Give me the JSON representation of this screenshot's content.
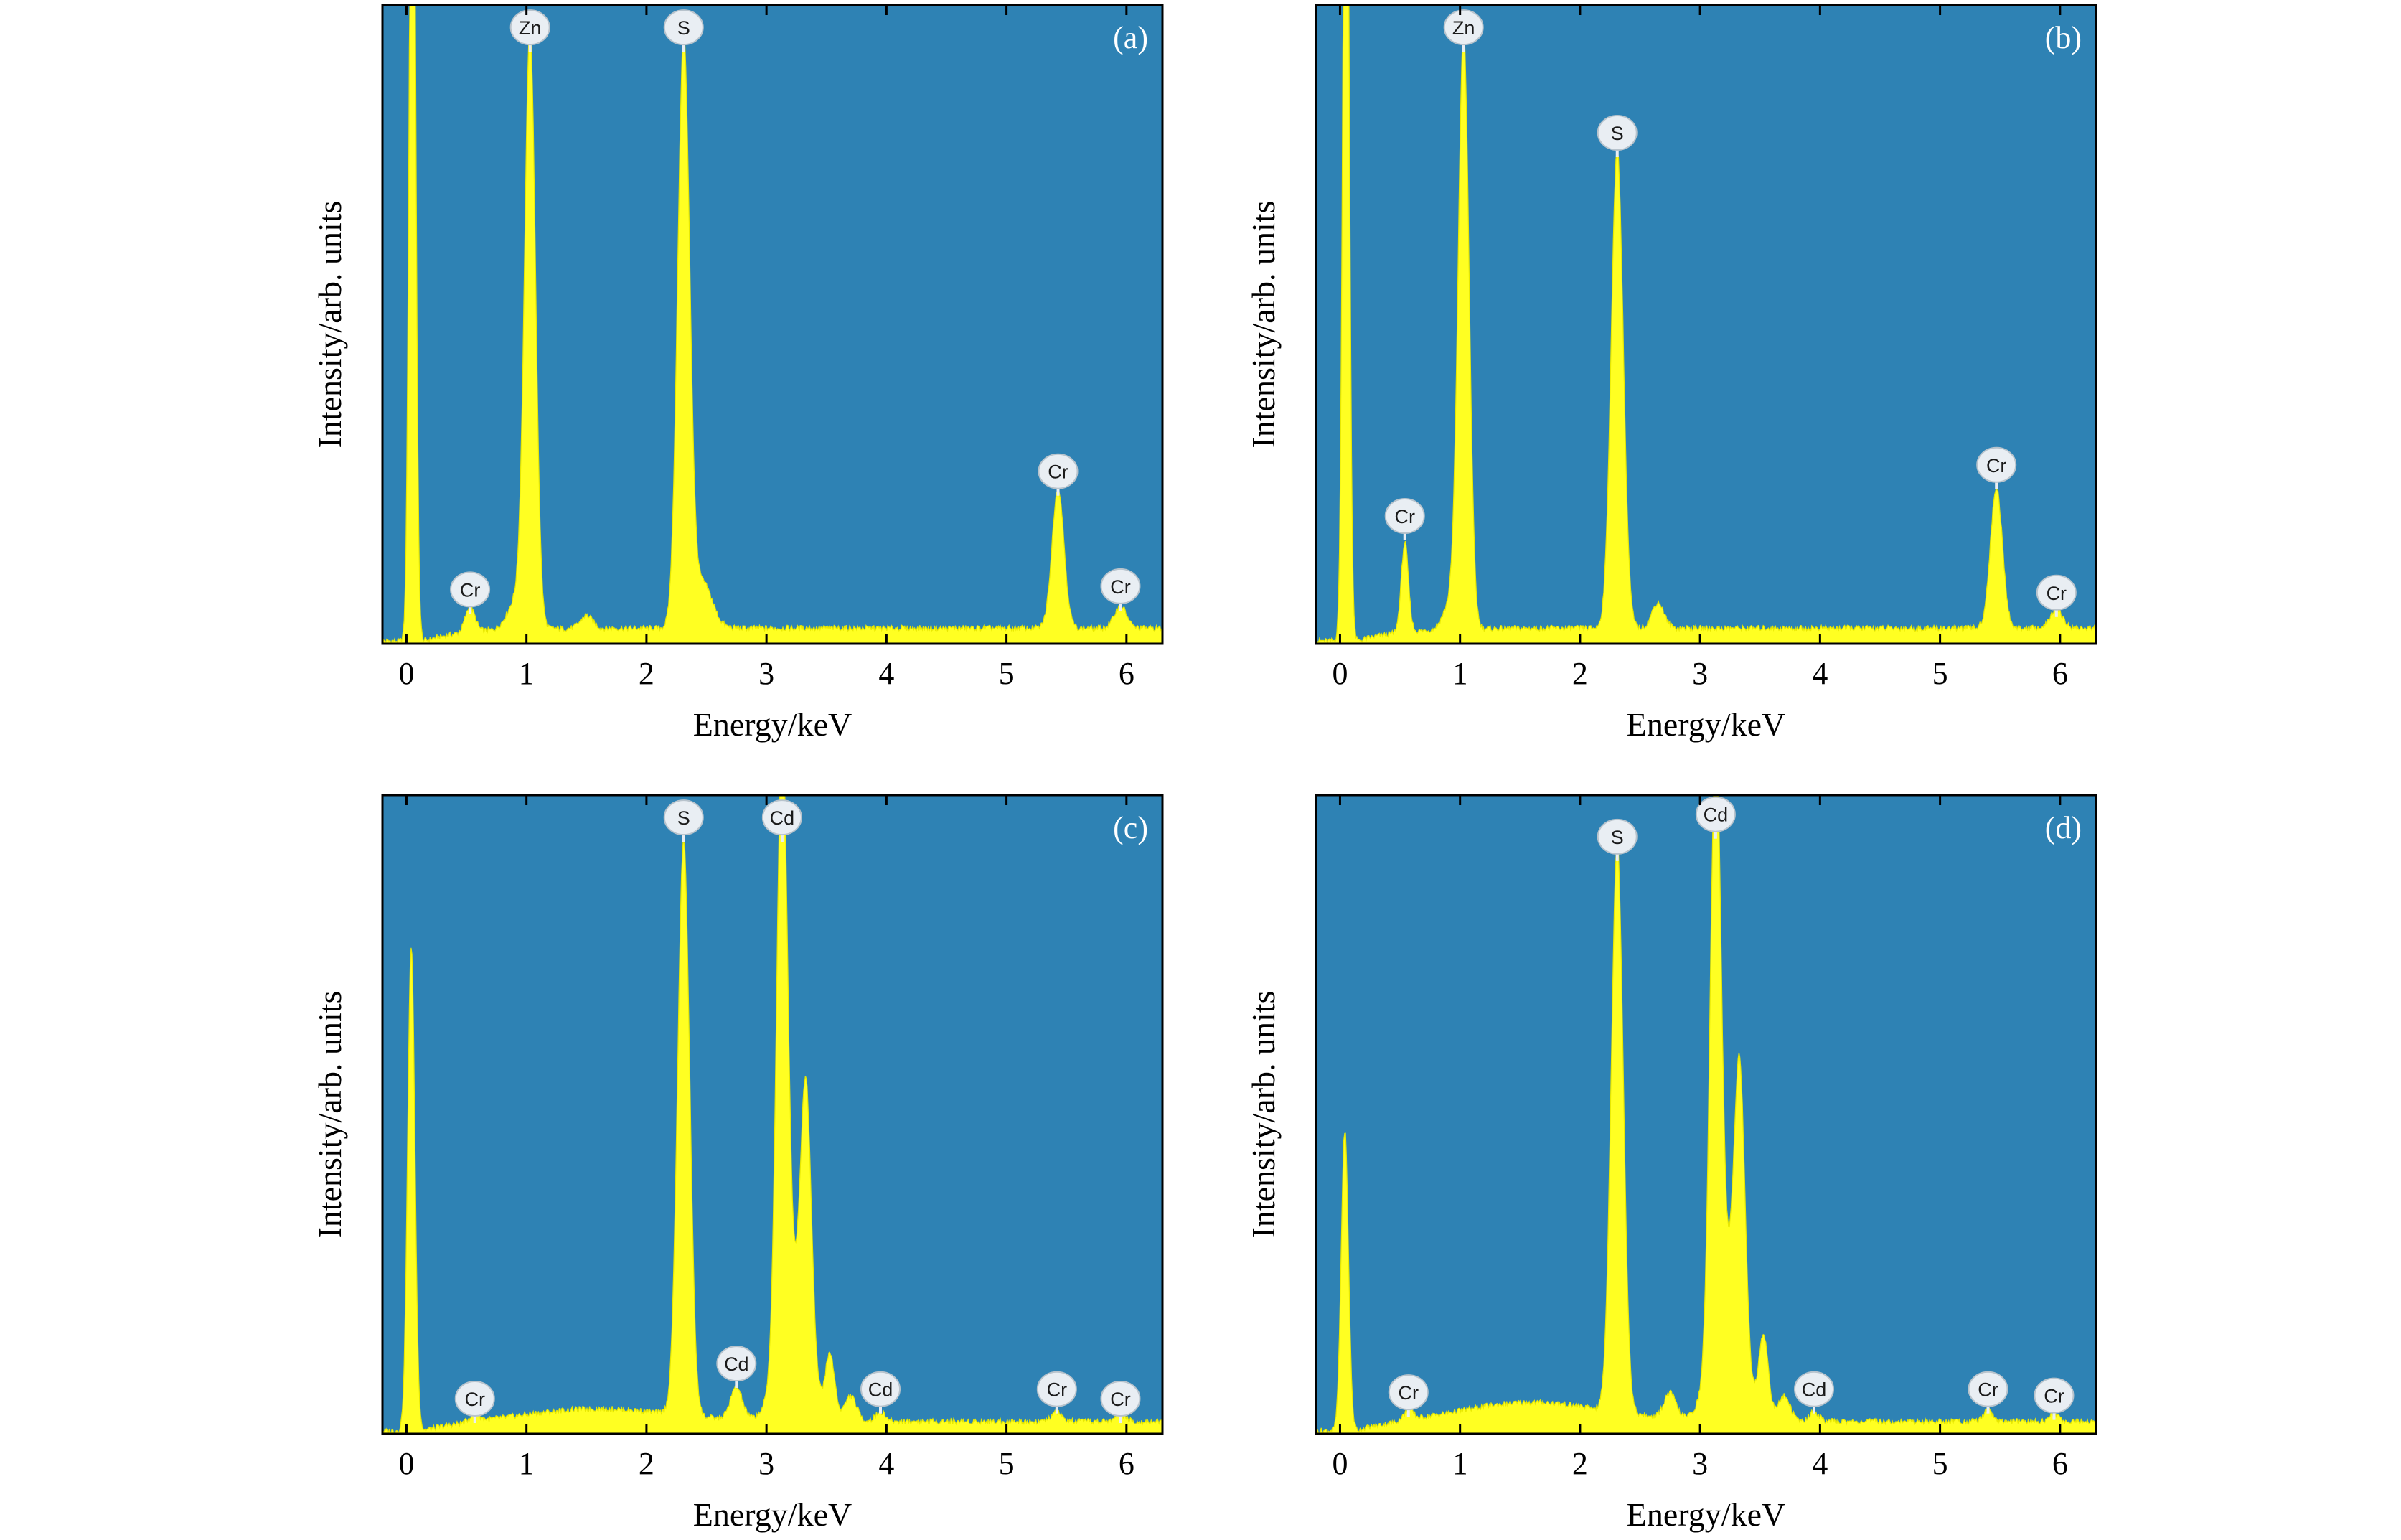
{
  "chart_data": [
    {
      "type": "area",
      "panel": "(a)",
      "xlabel": "Energy/keV",
      "ylabel": "Intensity/arb. units",
      "xlim": [
        -0.2,
        6.3
      ],
      "ylim": [
        0,
        100
      ],
      "xticks": [
        "0",
        "1",
        "2",
        "3",
        "4",
        "5",
        "6"
      ],
      "baseline": 2.0,
      "peaks": [
        {
          "x": 0.05,
          "h": 160,
          "w": 0.025
        },
        {
          "x": 0.53,
          "h": 4.0,
          "w": 0.04
        },
        {
          "x": 0.93,
          "h": 5.0,
          "w": 0.08
        },
        {
          "x": 1.03,
          "h": 92,
          "w": 0.045
        },
        {
          "x": 1.5,
          "h": 2.0,
          "w": 0.05
        },
        {
          "x": 2.31,
          "h": 92,
          "w": 0.05
        },
        {
          "x": 2.47,
          "h": 7.0,
          "w": 0.08
        },
        {
          "x": 5.43,
          "h": 22,
          "w": 0.05
        },
        {
          "x": 5.95,
          "h": 3.5,
          "w": 0.05
        }
      ],
      "peak_labels": [
        {
          "text": "Zn",
          "x": 1.03,
          "y": 96.5
        },
        {
          "text": "S",
          "x": 2.31,
          "y": 96.5
        },
        {
          "text": "Cr",
          "x": 0.53,
          "y": 8.5
        },
        {
          "text": "Cr",
          "x": 5.43,
          "y": 27
        },
        {
          "text": "Cr",
          "x": 5.95,
          "y": 9
        }
      ]
    },
    {
      "type": "area",
      "panel": "(b)",
      "xlabel": "Energy/keV",
      "ylabel": "Intensity/arb. units",
      "xlim": [
        -0.2,
        6.3
      ],
      "ylim": [
        0,
        100
      ],
      "xticks": [
        "0",
        "1",
        "2",
        "3",
        "4",
        "5",
        "6"
      ],
      "baseline": 2.0,
      "peaks": [
        {
          "x": 0.05,
          "h": 160,
          "w": 0.025
        },
        {
          "x": 0.54,
          "h": 14,
          "w": 0.03
        },
        {
          "x": 0.92,
          "h": 4.0,
          "w": 0.06
        },
        {
          "x": 1.03,
          "h": 93,
          "w": 0.045
        },
        {
          "x": 2.31,
          "h": 75,
          "w": 0.05
        },
        {
          "x": 2.65,
          "h": 4.0,
          "w": 0.05
        },
        {
          "x": 5.47,
          "h": 22,
          "w": 0.05
        },
        {
          "x": 5.97,
          "h": 3.0,
          "w": 0.05
        }
      ],
      "peak_labels": [
        {
          "text": "Zn",
          "x": 1.03,
          "y": 96.5
        },
        {
          "text": "S",
          "x": 2.31,
          "y": 80
        },
        {
          "text": "Cr",
          "x": 0.54,
          "y": 20
        },
        {
          "text": "Cr",
          "x": 5.47,
          "y": 28
        },
        {
          "text": "Cr",
          "x": 5.97,
          "y": 8
        }
      ]
    },
    {
      "type": "area",
      "panel": "(c)",
      "xlabel": "Energy/keV",
      "ylabel": "Intensity/arb. units",
      "xlim": [
        -0.2,
        6.3
      ],
      "ylim": [
        0,
        100
      ],
      "xticks": [
        "0",
        "1",
        "2",
        "3",
        "4",
        "5",
        "6"
      ],
      "baseline": 1.5,
      "peaks": [
        {
          "x": 0.04,
          "h": 76,
          "w": 0.03
        },
        {
          "x": 0.57,
          "h": 1.2,
          "w": 0.04
        },
        {
          "x": 1.6,
          "h": 2.0,
          "w": 0.6
        },
        {
          "x": 2.31,
          "h": 90,
          "w": 0.05
        },
        {
          "x": 2.75,
          "h": 5.0,
          "w": 0.05
        },
        {
          "x": 3.13,
          "h": 95,
          "w": 0.045
        },
        {
          "x": 3.33,
          "h": 42,
          "w": 0.045
        },
        {
          "x": 3.22,
          "h": 18,
          "w": 0.12
        },
        {
          "x": 3.53,
          "h": 10,
          "w": 0.04
        },
        {
          "x": 3.7,
          "h": 4.0,
          "w": 0.05
        },
        {
          "x": 3.95,
          "h": 1.5,
          "w": 0.04
        },
        {
          "x": 5.42,
          "h": 1.5,
          "w": 0.04
        },
        {
          "x": 5.95,
          "h": 1.2,
          "w": 0.04
        }
      ],
      "peak_labels": [
        {
          "text": "S",
          "x": 2.31,
          "y": 96.5
        },
        {
          "text": "Cd",
          "x": 3.13,
          "y": 96.5
        },
        {
          "text": "Cd",
          "x": 2.75,
          "y": 11
        },
        {
          "text": "Cd",
          "x": 3.95,
          "y": 7
        },
        {
          "text": "Cr",
          "x": 0.57,
          "y": 5.5
        },
        {
          "text": "Cr",
          "x": 5.42,
          "y": 7
        },
        {
          "text": "Cr",
          "x": 5.95,
          "y": 5.5
        }
      ]
    },
    {
      "type": "area",
      "panel": "(d)",
      "xlabel": "Energy/keV",
      "ylabel": "Intensity/arb. units",
      "xlim": [
        -0.2,
        6.3
      ],
      "ylim": [
        0,
        100
      ],
      "xticks": [
        "0",
        "1",
        "2",
        "3",
        "4",
        "5",
        "6"
      ],
      "baseline": 1.5,
      "peaks": [
        {
          "x": 0.04,
          "h": 47,
          "w": 0.03
        },
        {
          "x": 0.57,
          "h": 1.5,
          "w": 0.04
        },
        {
          "x": 1.6,
          "h": 3.0,
          "w": 0.6
        },
        {
          "x": 2.31,
          "h": 89,
          "w": 0.05
        },
        {
          "x": 2.75,
          "h": 4.0,
          "w": 0.05
        },
        {
          "x": 3.13,
          "h": 93,
          "w": 0.045
        },
        {
          "x": 3.33,
          "h": 44,
          "w": 0.045
        },
        {
          "x": 3.22,
          "h": 20,
          "w": 0.12
        },
        {
          "x": 3.53,
          "h": 13,
          "w": 0.04
        },
        {
          "x": 3.7,
          "h": 4.0,
          "w": 0.05
        },
        {
          "x": 3.95,
          "h": 1.5,
          "w": 0.04
        },
        {
          "x": 5.4,
          "h": 1.8,
          "w": 0.04
        },
        {
          "x": 5.95,
          "h": 1.2,
          "w": 0.04
        }
      ],
      "peak_labels": [
        {
          "text": "S",
          "x": 2.31,
          "y": 93.5
        },
        {
          "text": "Cd",
          "x": 3.13,
          "y": 97
        },
        {
          "text": "Cd",
          "x": 3.95,
          "y": 7
        },
        {
          "text": "Cr",
          "x": 0.57,
          "y": 6.5
        },
        {
          "text": "Cr",
          "x": 5.4,
          "y": 7
        },
        {
          "text": "Cr",
          "x": 5.95,
          "y": 6
        }
      ]
    }
  ]
}
